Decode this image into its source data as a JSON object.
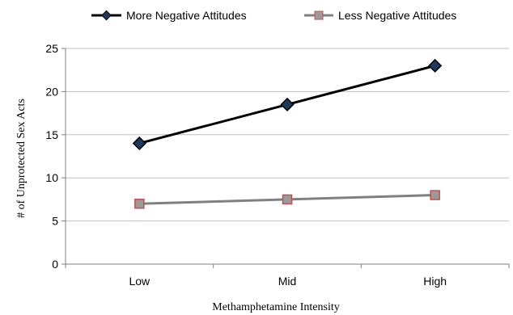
{
  "chart_data": {
    "type": "line",
    "title": "",
    "xlabel": "Methamphetamine Intensity",
    "ylabel": "# of Unprotected Sex Acts",
    "categories": [
      "Low",
      "Mid",
      "High"
    ],
    "ylim": [
      0,
      25
    ],
    "yticks": [
      "0",
      "5",
      "10",
      "15",
      "20",
      "25"
    ],
    "grid": true,
    "legend_position": "top",
    "series": [
      {
        "name": "More Negative Attitudes",
        "values": [
          14,
          18.5,
          23
        ],
        "color": "#000000",
        "marker": "diamond",
        "marker_fill": "#1f3a5f"
      },
      {
        "name": "Less Negative Attitudes",
        "values": [
          7,
          7.5,
          8
        ],
        "color": "#808080",
        "marker": "square",
        "marker_fill": "#9a9a9a",
        "marker_stroke": "#c0504d"
      }
    ]
  }
}
